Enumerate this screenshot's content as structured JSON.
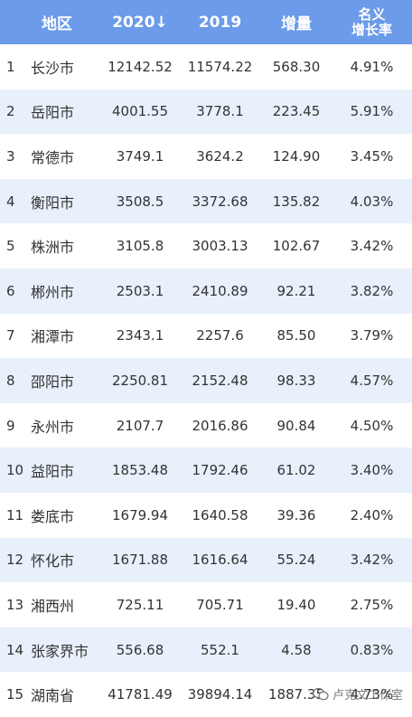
{
  "chart_data": {
    "type": "table",
    "columns": [
      "",
      "地区",
      "2020↓",
      "2019",
      "增量",
      "名义\n增长率"
    ],
    "rows": [
      {
        "rank": "1",
        "region": "长沙市",
        "y2020": "12142.52",
        "y2019": "11574.22",
        "inc": "568.30",
        "rate": "4.91%"
      },
      {
        "rank": "2",
        "region": "岳阳市",
        "y2020": "4001.55",
        "y2019": "3778.1",
        "inc": "223.45",
        "rate": "5.91%"
      },
      {
        "rank": "3",
        "region": "常德市",
        "y2020": "3749.1",
        "y2019": "3624.2",
        "inc": "124.90",
        "rate": "3.45%"
      },
      {
        "rank": "4",
        "region": "衡阳市",
        "y2020": "3508.5",
        "y2019": "3372.68",
        "inc": "135.82",
        "rate": "4.03%"
      },
      {
        "rank": "5",
        "region": "株洲市",
        "y2020": "3105.8",
        "y2019": "3003.13",
        "inc": "102.67",
        "rate": "3.42%"
      },
      {
        "rank": "6",
        "region": "郴州市",
        "y2020": "2503.1",
        "y2019": "2410.89",
        "inc": "92.21",
        "rate": "3.82%"
      },
      {
        "rank": "7",
        "region": "湘潭市",
        "y2020": "2343.1",
        "y2019": "2257.6",
        "inc": "85.50",
        "rate": "3.79%"
      },
      {
        "rank": "8",
        "region": "邵阳市",
        "y2020": "2250.81",
        "y2019": "2152.48",
        "inc": "98.33",
        "rate": "4.57%"
      },
      {
        "rank": "9",
        "region": "永州市",
        "y2020": "2107.7",
        "y2019": "2016.86",
        "inc": "90.84",
        "rate": "4.50%"
      },
      {
        "rank": "10",
        "region": "益阳市",
        "y2020": "1853.48",
        "y2019": "1792.46",
        "inc": "61.02",
        "rate": "3.40%"
      },
      {
        "rank": "11",
        "region": "娄底市",
        "y2020": "1679.94",
        "y2019": "1640.58",
        "inc": "39.36",
        "rate": "2.40%"
      },
      {
        "rank": "12",
        "region": "怀化市",
        "y2020": "1671.88",
        "y2019": "1616.64",
        "inc": "55.24",
        "rate": "3.42%"
      },
      {
        "rank": "13",
        "region": "湘西州",
        "y2020": "725.11",
        "y2019": "705.71",
        "inc": "19.40",
        "rate": "2.75%"
      },
      {
        "rank": "14",
        "region": "张家界市",
        "y2020": "556.68",
        "y2019": "552.1",
        "inc": "4.58",
        "rate": "0.83%"
      },
      {
        "rank": "15",
        "region": "湖南省",
        "y2020": "41781.49",
        "y2019": "39894.14",
        "inc": "1887.35",
        "rate": "4.73%"
      }
    ]
  },
  "colors": {
    "header_bg": "#6b9be9",
    "row_alt_bg": "#e8f0fb",
    "text": "#333333"
  },
  "watermark": {
    "icon": "wechat-icon",
    "text": "卢克文工作室"
  }
}
